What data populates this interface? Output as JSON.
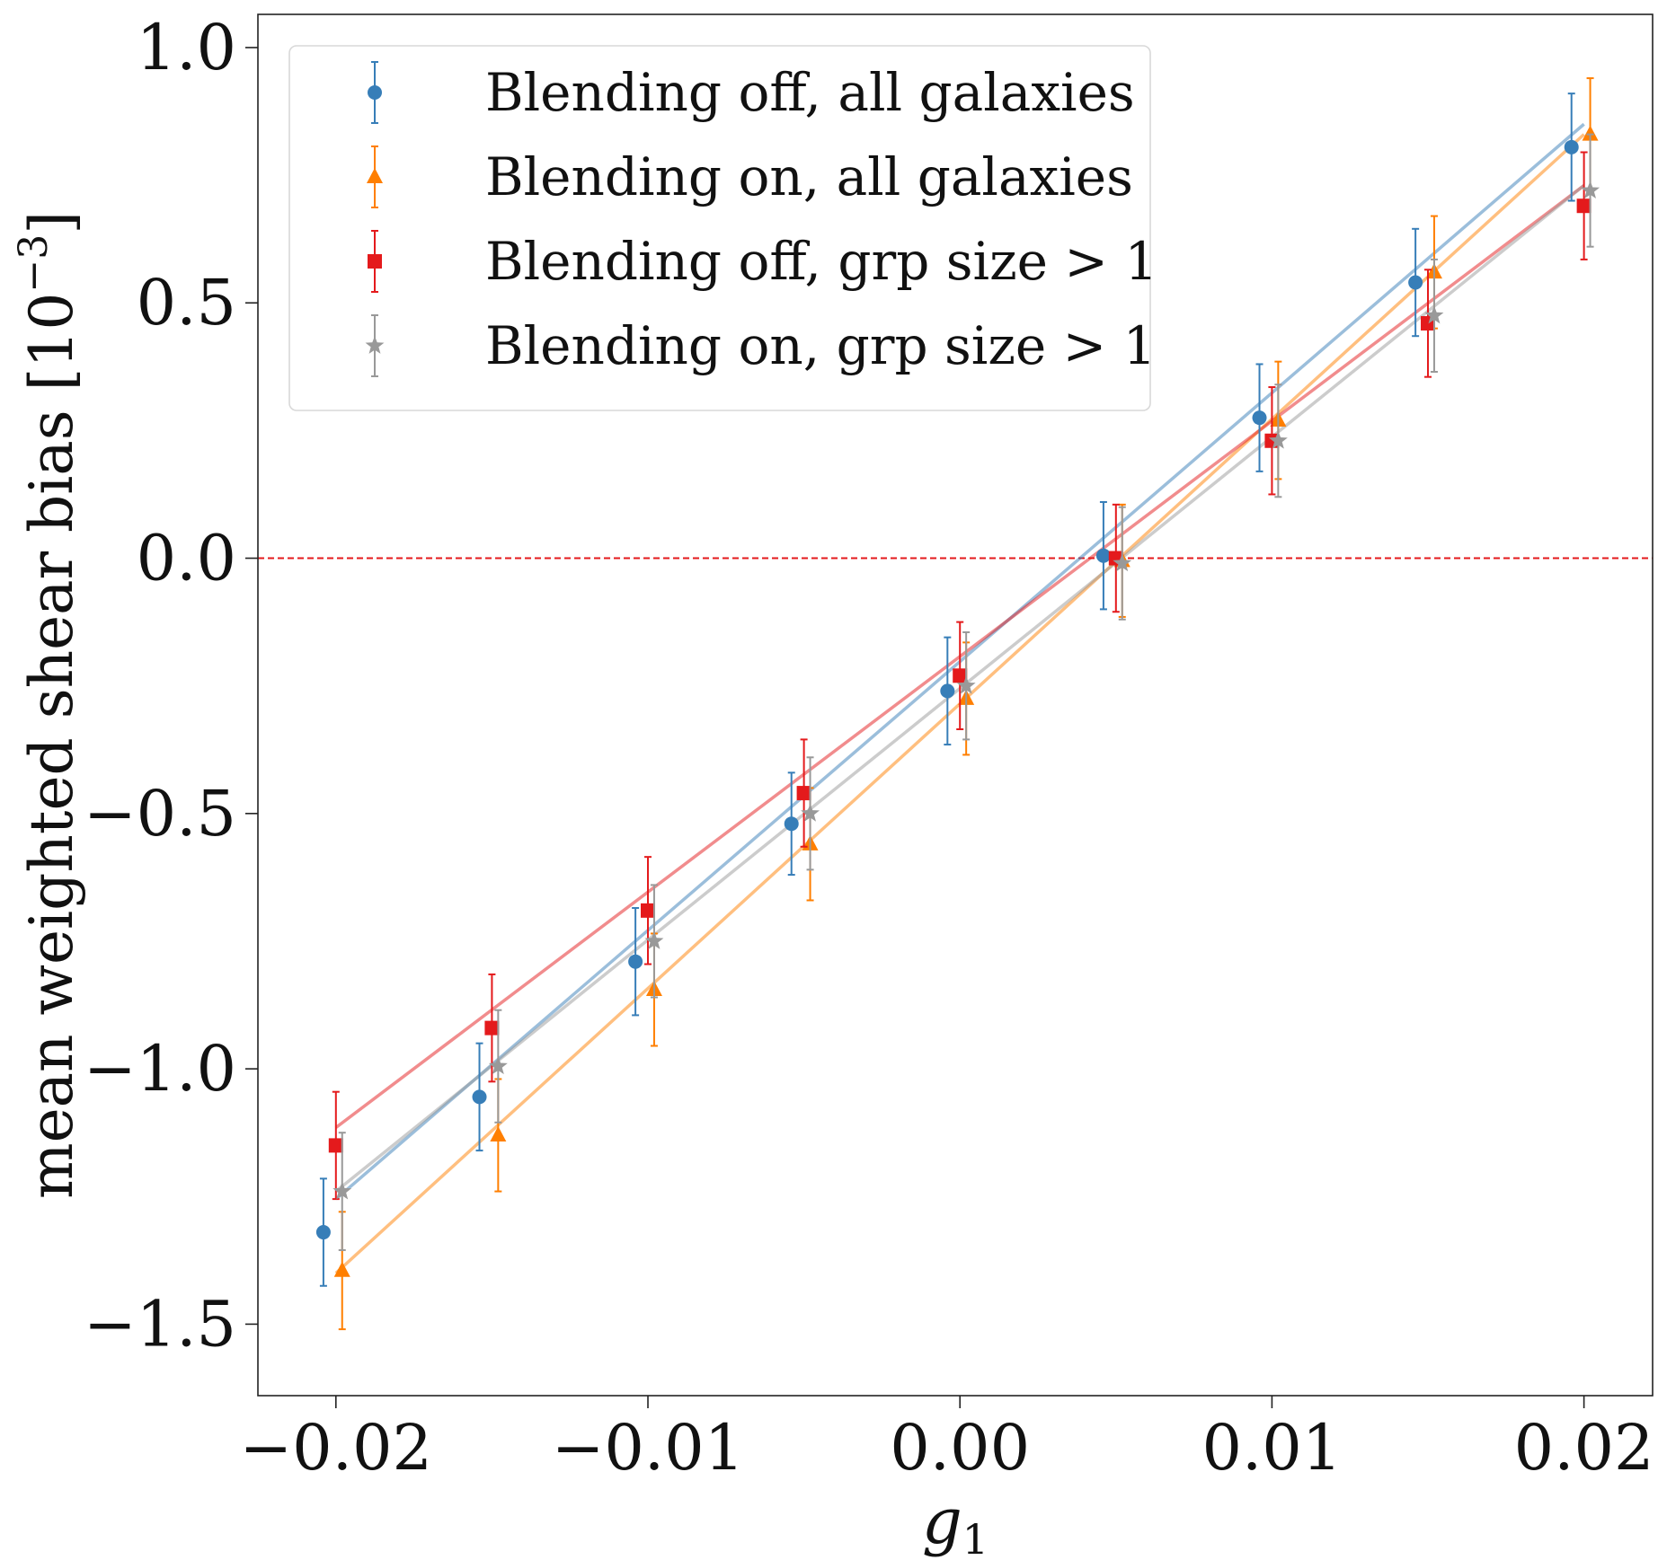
{
  "chart_data": {
    "type": "scatter",
    "xlabel": "g",
    "xlabel_sub": "1",
    "ylabel": "mean weighted shear bias [10",
    "ylabel_exp": "−3",
    "ylabel_close": "]",
    "xlim": [
      -0.0225,
      0.0222
    ],
    "ylim": [
      -1.64,
      1.065
    ],
    "xticks": [
      -0.02,
      -0.01,
      0.0,
      0.01,
      0.02
    ],
    "xtick_labels": [
      "−0.02",
      "−0.01",
      "0.00",
      "0.01",
      "0.02"
    ],
    "yticks": [
      -1.5,
      -1.0,
      -0.5,
      0.0,
      0.5,
      1.0
    ],
    "ytick_labels": [
      "−1.5",
      "−1.0",
      "−0.5",
      "0.0",
      "0.5",
      "1.0"
    ],
    "reference_line": {
      "y": 0.0,
      "color": "#e41a1c",
      "style": "dashed"
    },
    "legend_position": "top-left",
    "series": [
      {
        "name": "Blending off, all galaxies",
        "marker": "circle",
        "color": "#377eb8",
        "x": [
          -0.0204,
          -0.0154,
          -0.0104,
          -0.0054,
          -0.0004,
          0.0046,
          0.0096,
          0.0146,
          0.0196
        ],
        "y": [
          -1.32,
          -1.055,
          -0.79,
          -0.52,
          -0.26,
          0.005,
          0.275,
          0.54,
          0.805
        ],
        "yerr": [
          0.105,
          0.105,
          0.105,
          0.1,
          0.105,
          0.105,
          0.105,
          0.105,
          0.105
        ],
        "fit": {
          "x": [
            -0.02,
            0.02
          ],
          "y": [
            -1.255,
            0.85
          ]
        }
      },
      {
        "name": "Blending on, all galaxies",
        "marker": "triangle",
        "color": "#ff7f00",
        "x": [
          -0.0198,
          -0.0148,
          -0.0098,
          -0.0048,
          0.0002,
          0.0052,
          0.0102,
          0.0152,
          0.0202
        ],
        "y": [
          -1.395,
          -1.13,
          -0.845,
          -0.56,
          -0.275,
          -0.005,
          0.27,
          0.56,
          0.83
        ],
        "yerr": [
          0.115,
          0.11,
          0.11,
          0.11,
          0.11,
          0.11,
          0.115,
          0.11,
          0.11
        ],
        "fit": {
          "x": [
            -0.02,
            0.02
          ],
          "y": [
            -1.4,
            0.83
          ]
        }
      },
      {
        "name": "Blending off, grp size > 1",
        "marker": "square",
        "color": "#e41a1c",
        "x": [
          -0.02,
          -0.015,
          -0.01,
          -0.005,
          0.0,
          0.005,
          0.01,
          0.015,
          0.02
        ],
        "y": [
          -1.15,
          -0.92,
          -0.69,
          -0.46,
          -0.23,
          0.0,
          0.23,
          0.46,
          0.69
        ],
        "yerr": [
          0.105,
          0.105,
          0.105,
          0.105,
          0.105,
          0.105,
          0.105,
          0.105,
          0.105
        ],
        "fit": {
          "x": [
            -0.02,
            0.02
          ],
          "y": [
            -1.115,
            0.73
          ]
        }
      },
      {
        "name": "Blending on, grp size > 1",
        "marker": "star",
        "color": "#999999",
        "x": [
          -0.0198,
          -0.0148,
          -0.0098,
          -0.0048,
          0.0002,
          0.0052,
          0.0102,
          0.0152,
          0.0202
        ],
        "y": [
          -1.24,
          -0.995,
          -0.75,
          -0.5,
          -0.25,
          -0.01,
          0.23,
          0.475,
          0.72
        ],
        "yerr": [
          0.115,
          0.11,
          0.11,
          0.11,
          0.105,
          0.11,
          0.11,
          0.11,
          0.11
        ],
        "fit": {
          "x": [
            -0.02,
            0.02
          ],
          "y": [
            -1.24,
            0.73
          ]
        }
      }
    ]
  }
}
